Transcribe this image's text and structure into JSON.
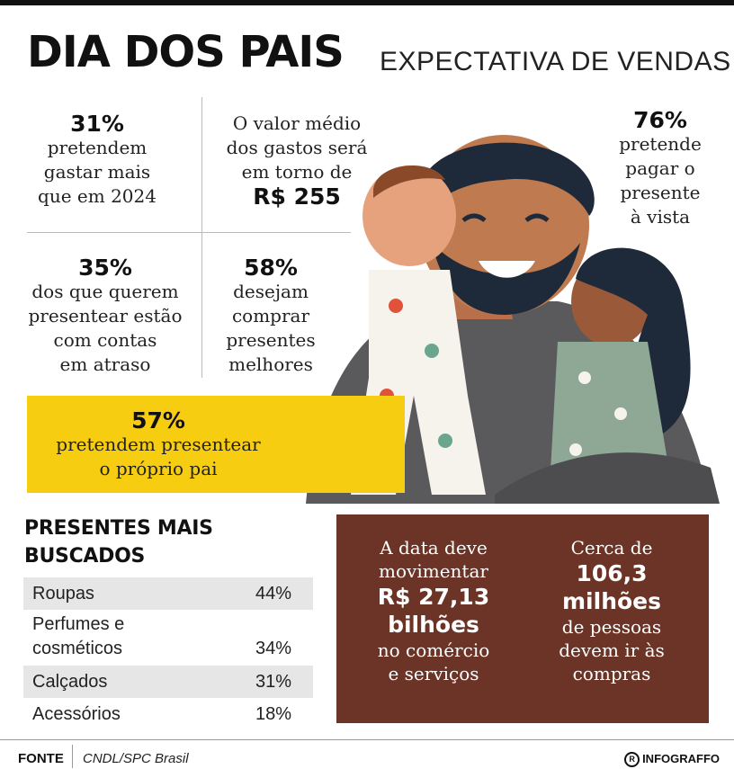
{
  "header": {
    "title": "DIA DOS PAIS",
    "subtitle": "EXPECTATIVA DE VENDAS"
  },
  "stats": {
    "spend_more": {
      "value": "31%",
      "line1": "pretendem",
      "line2": "gastar mais",
      "line3": "que em 2024"
    },
    "average": {
      "line1": "O valor médio",
      "line2": "dos gastos será",
      "line3": "em torno de",
      "value": "R$ 255"
    },
    "cash": {
      "value": "76%",
      "line1": "pretende",
      "line2": "pagar o",
      "line3": "presente",
      "line4": "à vista"
    },
    "late_bills": {
      "value": "35%",
      "line1": "dos que querem",
      "line2": "presentear estão",
      "line3": "com contas",
      "line4": "em atraso"
    },
    "better_gifts": {
      "value": "58%",
      "line1": "desejam",
      "line2": "comprar",
      "line3": "presentes",
      "line4": "melhores"
    },
    "own_father": {
      "value": "57%",
      "line1": "pretendem presentear",
      "line2": "o próprio pai"
    }
  },
  "gifts": {
    "title_line1": "PRESENTES MAIS",
    "title_line2": "BUSCADOS",
    "items": [
      {
        "label": "Roupas",
        "pct": "44%"
      },
      {
        "label1": "Perfumes e",
        "label2": "cosméticos",
        "pct": "34%"
      },
      {
        "label": "Calçados",
        "pct": "31%"
      },
      {
        "label": "Acessórios",
        "pct": "18%"
      }
    ]
  },
  "economy": {
    "left": {
      "line1": "A data deve",
      "line2": "movimentar",
      "value1": "R$ 27,13",
      "value2": "bilhões",
      "line3": "no comércio",
      "line4": "e serviços"
    },
    "right": {
      "line1": "Cerca de",
      "value1": "106,3",
      "value2": "milhões",
      "line2": "de pessoas",
      "line3": "devem ir às",
      "line4": "compras"
    }
  },
  "footer": {
    "label": "FONTE",
    "source": "CNDL/SPC Brasil",
    "brand": "INFOGRAFFO"
  },
  "colors": {
    "yellow": "#f7cd12",
    "brown": "#6b3426",
    "shade": "#e6e6e6"
  }
}
